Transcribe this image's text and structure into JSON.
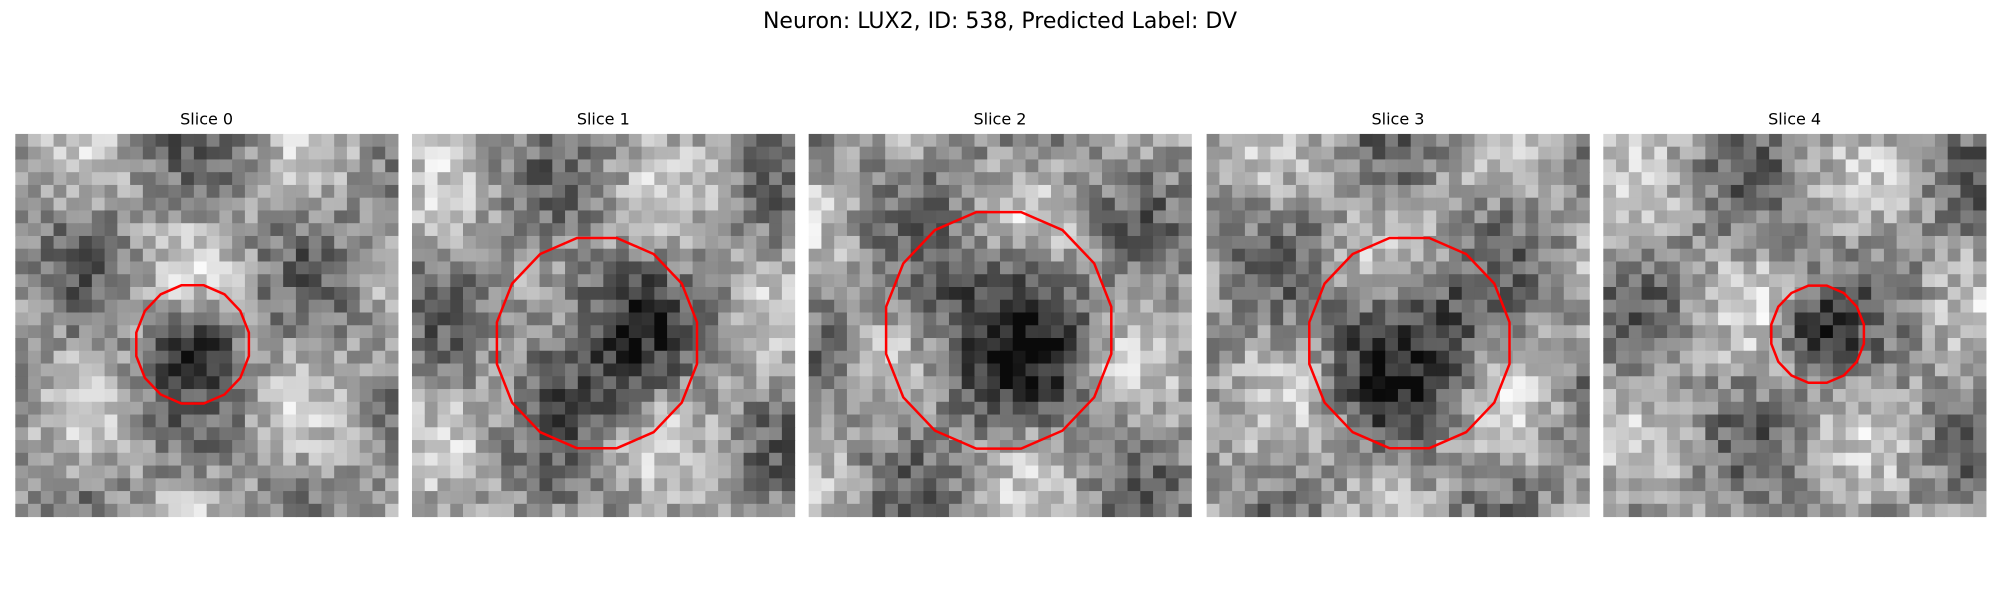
{
  "title": "Neuron: LUX2, ID: 538, Predicted Label: DV",
  "panels": [
    {
      "title": "Slice 0"
    },
    {
      "title": "Slice 1"
    },
    {
      "title": "Slice 2"
    },
    {
      "title": "Slice 3"
    },
    {
      "title": "Slice 4"
    }
  ]
}
